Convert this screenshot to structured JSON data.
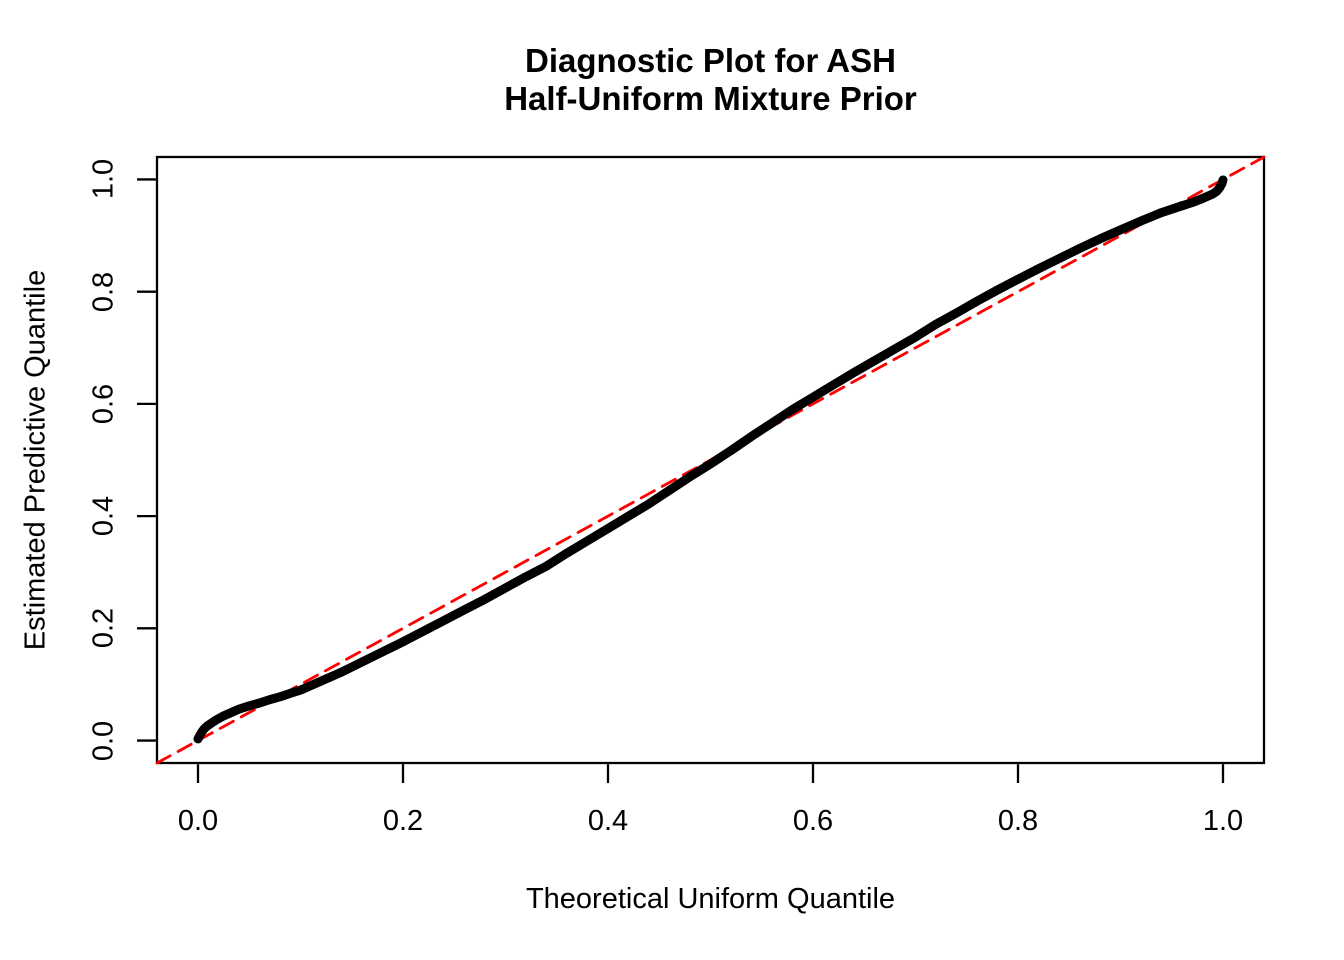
{
  "figure": {
    "background": "#ffffff",
    "text_color": "#000000"
  },
  "chart_data": {
    "type": "line",
    "title_lines": [
      "Diagnostic Plot for ASH",
      "Half-Uniform Mixture Prior"
    ],
    "xlabel": "Theoretical Uniform Quantile",
    "ylabel": "Estimated Predictive Quantile",
    "xlim": [
      -0.04,
      1.04
    ],
    "ylim": [
      -0.04,
      1.04
    ],
    "grid": false,
    "legend": "none",
    "frame_color": "#000000",
    "x_ticks": {
      "values": [
        0.0,
        0.2,
        0.4,
        0.6,
        0.8,
        1.0
      ],
      "labels": [
        "0.0",
        "0.2",
        "0.4",
        "0.6",
        "0.8",
        "1.0"
      ]
    },
    "y_ticks": {
      "values": [
        0.0,
        0.2,
        0.4,
        0.6,
        0.8,
        1.0
      ],
      "labels": [
        "0.0",
        "0.2",
        "0.4",
        "0.6",
        "0.8",
        "1.0"
      ]
    },
    "series": [
      {
        "name": "identity-reference-line",
        "style": "dashed",
        "color": "#FF0000",
        "stroke_width": 2.8,
        "dash": "15 9",
        "points": [
          [
            -0.04,
            -0.04
          ],
          [
            1.04,
            1.04
          ]
        ]
      },
      {
        "name": "estimated-vs-theoretical-quantile-curve",
        "style": "solid",
        "color": "#000000",
        "stroke_width": 9,
        "dash": null,
        "points": [
          [
            0.0,
            0.003
          ],
          [
            0.002,
            0.01
          ],
          [
            0.004,
            0.016
          ],
          [
            0.006,
            0.021
          ],
          [
            0.009,
            0.026
          ],
          [
            0.013,
            0.031
          ],
          [
            0.018,
            0.037
          ],
          [
            0.024,
            0.043
          ],
          [
            0.03,
            0.048
          ],
          [
            0.04,
            0.056
          ],
          [
            0.05,
            0.062
          ],
          [
            0.06,
            0.067
          ],
          [
            0.07,
            0.073
          ],
          [
            0.08,
            0.078
          ],
          [
            0.09,
            0.084
          ],
          [
            0.1,
            0.09
          ],
          [
            0.12,
            0.106
          ],
          [
            0.14,
            0.122
          ],
          [
            0.16,
            0.14
          ],
          [
            0.18,
            0.158
          ],
          [
            0.2,
            0.176
          ],
          [
            0.22,
            0.195
          ],
          [
            0.24,
            0.214
          ],
          [
            0.26,
            0.233
          ],
          [
            0.28,
            0.252
          ],
          [
            0.3,
            0.272
          ],
          [
            0.32,
            0.292
          ],
          [
            0.34,
            0.311
          ],
          [
            0.36,
            0.334
          ],
          [
            0.38,
            0.356
          ],
          [
            0.4,
            0.378
          ],
          [
            0.42,
            0.4
          ],
          [
            0.44,
            0.422
          ],
          [
            0.46,
            0.446
          ],
          [
            0.48,
            0.47
          ],
          [
            0.5,
            0.493
          ],
          [
            0.52,
            0.517
          ],
          [
            0.54,
            0.542
          ],
          [
            0.56,
            0.566
          ],
          [
            0.58,
            0.59
          ],
          [
            0.6,
            0.612
          ],
          [
            0.62,
            0.634
          ],
          [
            0.64,
            0.656
          ],
          [
            0.66,
            0.677
          ],
          [
            0.68,
            0.698
          ],
          [
            0.7,
            0.719
          ],
          [
            0.72,
            0.742
          ],
          [
            0.74,
            0.762
          ],
          [
            0.76,
            0.783
          ],
          [
            0.78,
            0.803
          ],
          [
            0.8,
            0.822
          ],
          [
            0.82,
            0.841
          ],
          [
            0.84,
            0.859
          ],
          [
            0.86,
            0.877
          ],
          [
            0.88,
            0.894
          ],
          [
            0.9,
            0.91
          ],
          [
            0.92,
            0.926
          ],
          [
            0.94,
            0.941
          ],
          [
            0.95,
            0.947
          ],
          [
            0.96,
            0.953
          ],
          [
            0.97,
            0.959
          ],
          [
            0.98,
            0.966
          ],
          [
            0.99,
            0.974
          ],
          [
            0.994,
            0.979
          ],
          [
            0.997,
            0.986
          ],
          [
            0.999,
            0.993
          ],
          [
            1.0,
            0.999
          ]
        ]
      }
    ]
  }
}
